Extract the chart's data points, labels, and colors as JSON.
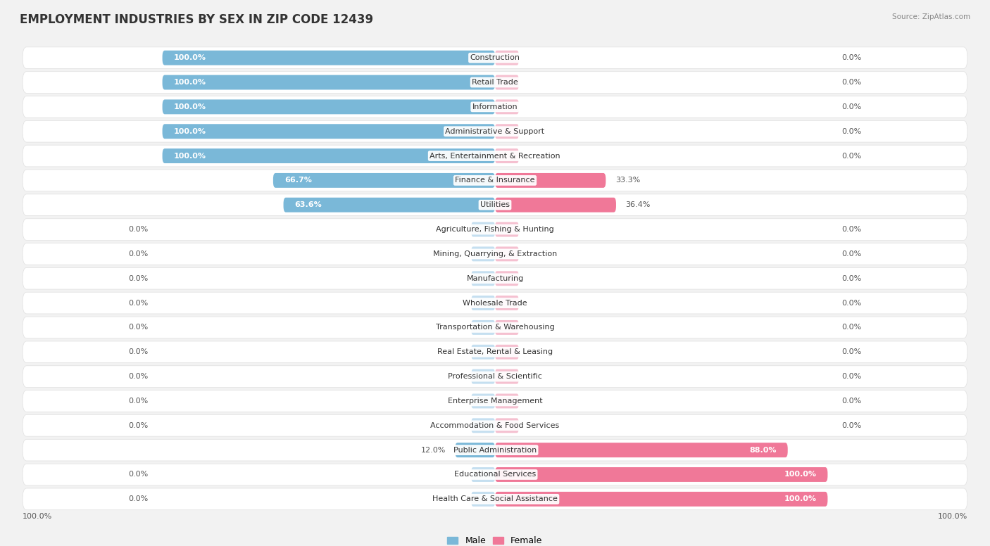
{
  "title": "EMPLOYMENT INDUSTRIES BY SEX IN ZIP CODE 12439",
  "source": "Source: ZipAtlas.com",
  "categories": [
    "Construction",
    "Retail Trade",
    "Information",
    "Administrative & Support",
    "Arts, Entertainment & Recreation",
    "Finance & Insurance",
    "Utilities",
    "Agriculture, Fishing & Hunting",
    "Mining, Quarrying, & Extraction",
    "Manufacturing",
    "Wholesale Trade",
    "Transportation & Warehousing",
    "Real Estate, Rental & Leasing",
    "Professional & Scientific",
    "Enterprise Management",
    "Accommodation & Food Services",
    "Public Administration",
    "Educational Services",
    "Health Care & Social Assistance"
  ],
  "male": [
    100.0,
    100.0,
    100.0,
    100.0,
    100.0,
    66.7,
    63.6,
    0.0,
    0.0,
    0.0,
    0.0,
    0.0,
    0.0,
    0.0,
    0.0,
    0.0,
    12.0,
    0.0,
    0.0
  ],
  "female": [
    0.0,
    0.0,
    0.0,
    0.0,
    0.0,
    33.3,
    36.4,
    0.0,
    0.0,
    0.0,
    0.0,
    0.0,
    0.0,
    0.0,
    0.0,
    0.0,
    88.0,
    100.0,
    100.0
  ],
  "male_color": "#7ab8d8",
  "female_color": "#f07898",
  "male_color_light": "#c5dff0",
  "female_color_light": "#f5c0d0",
  "bg_color": "#f2f2f2",
  "row_bg_color": "#ffffff",
  "title_fontsize": 12,
  "label_fontsize": 8,
  "pct_fontsize": 8,
  "axis_label_fontsize": 8
}
